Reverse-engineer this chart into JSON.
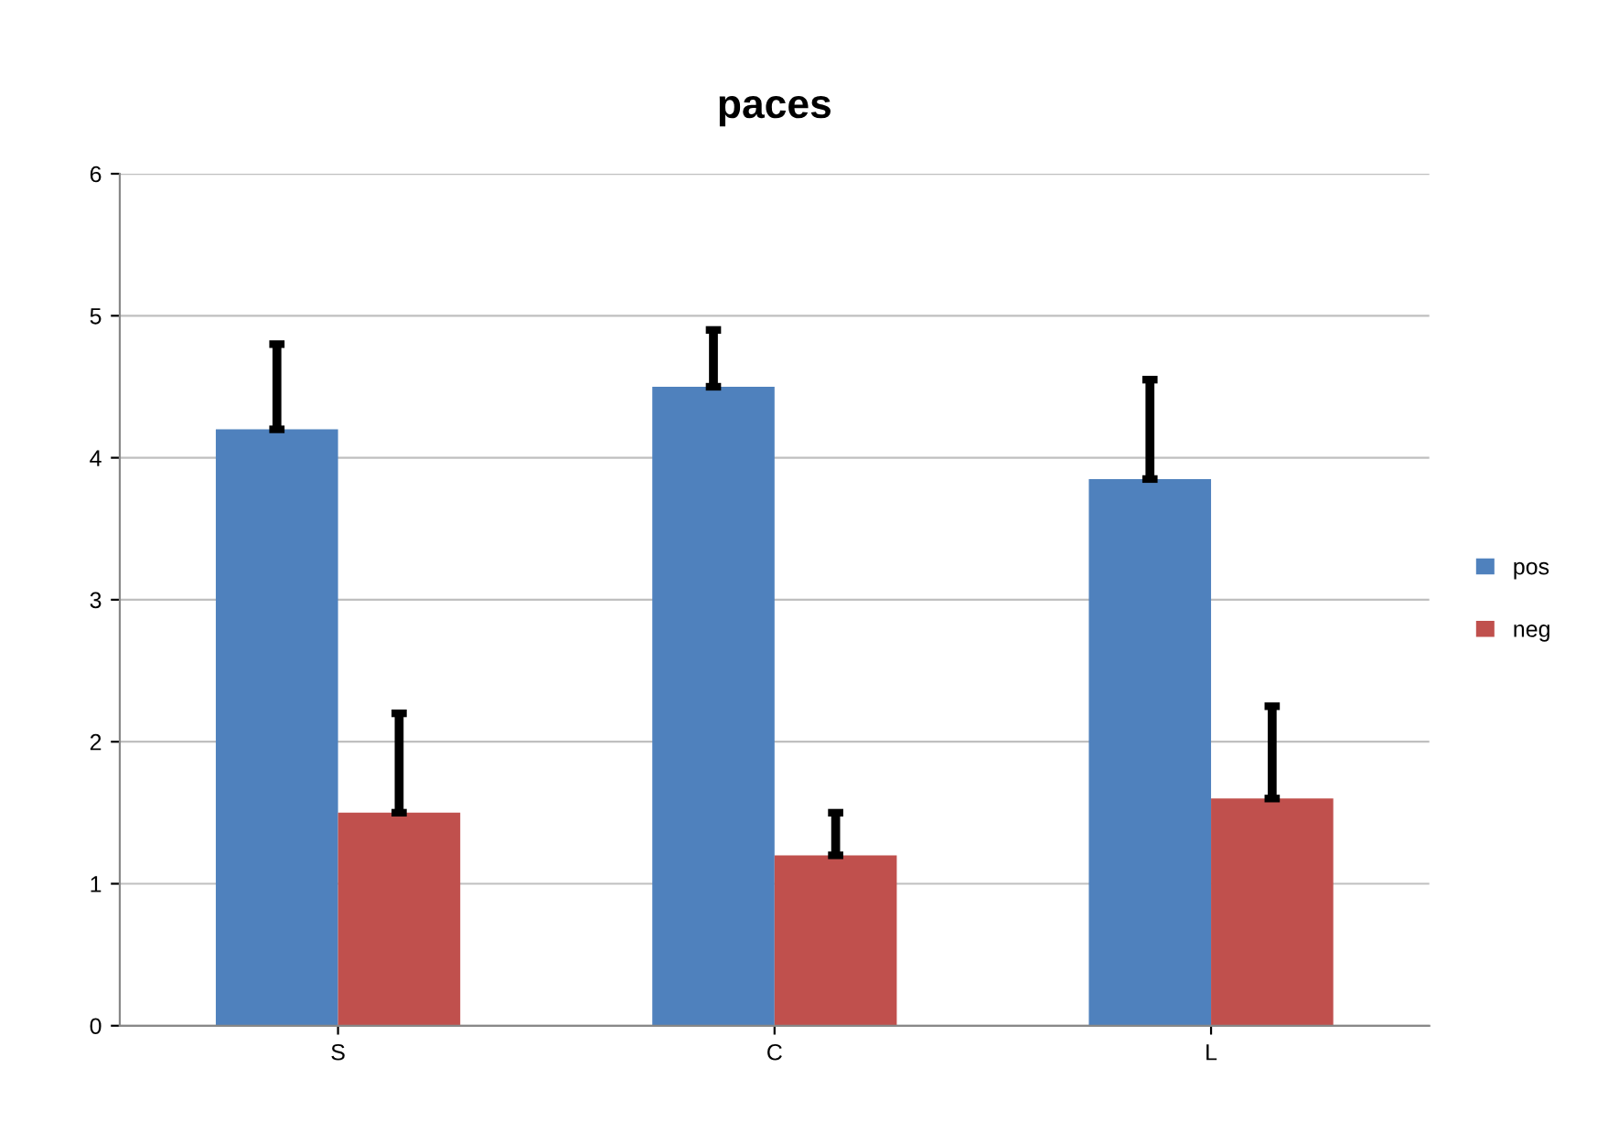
{
  "chart_data": {
    "type": "bar",
    "title": "paces",
    "categories": [
      "S",
      "C",
      "L"
    ],
    "series": [
      {
        "name": "pos",
        "color": "#4f81bd",
        "values": [
          4.2,
          4.5,
          3.85
        ],
        "errors": [
          [
            4.2,
            4.8
          ],
          [
            4.5,
            4.9
          ],
          [
            3.85,
            4.55
          ]
        ]
      },
      {
        "name": "neg",
        "color": "#c0504d",
        "values": [
          1.5,
          1.2,
          1.6
        ],
        "errors": [
          [
            1.5,
            2.2
          ],
          [
            1.2,
            1.5
          ],
          [
            1.6,
            2.25
          ]
        ]
      }
    ],
    "ylim": [
      0,
      6
    ],
    "yticks": [
      0,
      1,
      2,
      3,
      4,
      5,
      6
    ],
    "grid": "y",
    "legend": "right"
  }
}
